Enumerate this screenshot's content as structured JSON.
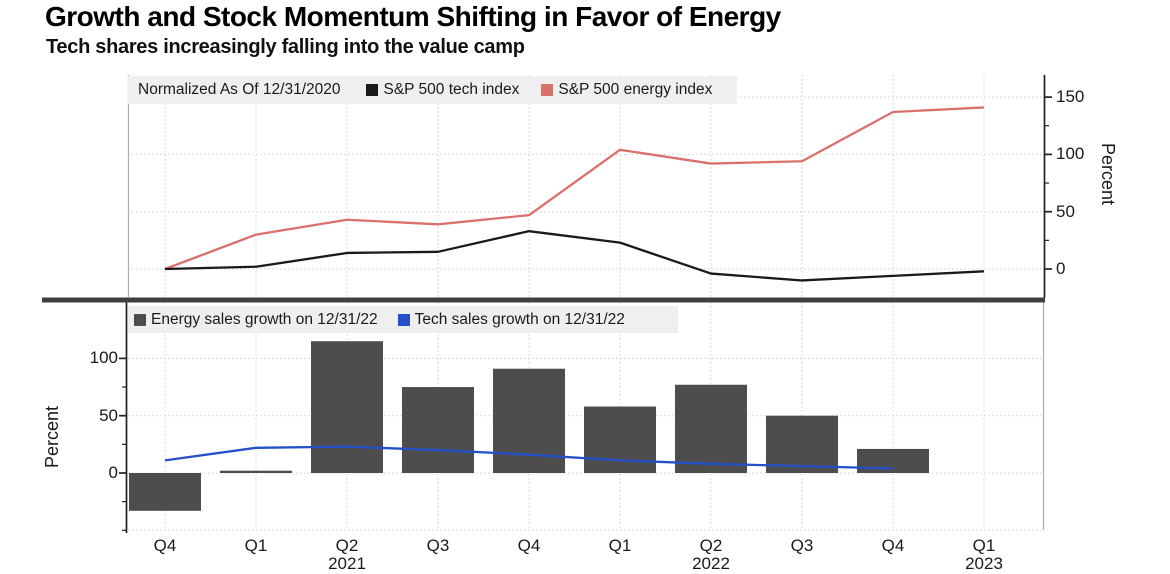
{
  "header": {
    "title": "Growth and Stock Momentum Shifting in Favor of Energy",
    "subtitle": "Tech shares increasingly falling into the value camp"
  },
  "colors": {
    "tech_index_line": "#1a1a1a",
    "energy_index_line": "#d9716b",
    "energy_bar": "#4d4d4d",
    "tech_sales_line": "#2450c8",
    "legend_background": "#efefef",
    "gridline": "#cfcfcf",
    "divider": "#3f3f3f"
  },
  "x_axis": {
    "quarters": [
      "Q4",
      "Q1",
      "Q2",
      "Q3",
      "Q4",
      "Q1",
      "Q2",
      "Q3",
      "Q4",
      "Q1"
    ],
    "years": [
      {
        "index": 2,
        "label": "2021"
      },
      {
        "index": 6,
        "label": "2022"
      },
      {
        "index": 9,
        "label": "2023"
      }
    ]
  },
  "chart_data": [
    {
      "type": "line",
      "note": "Normalized As Of 12/31/2020",
      "categories": [
        "Q4 2020",
        "Q1 2021",
        "Q2 2021",
        "Q3 2021",
        "Q4 2021",
        "Q1 2022",
        "Q2 2022",
        "Q3 2022",
        "Q4 2022",
        "Q1 2023"
      ],
      "series": [
        {
          "name": "S&P 500 tech index",
          "color": "#1a1a1a",
          "values": [
            0,
            2,
            14,
            15,
            33,
            23,
            -4,
            -10,
            -6,
            -2
          ]
        },
        {
          "name": "S&P 500 energy index",
          "color": "#d9716b",
          "values": [
            0,
            30,
            43,
            39,
            47,
            104,
            92,
            94,
            137,
            141
          ]
        }
      ],
      "ylabel": "Percent",
      "yticks": [
        0,
        50,
        100,
        150
      ],
      "minor_yticks": [
        25,
        75,
        125
      ],
      "ylim": [
        -25,
        170
      ],
      "grid": true,
      "legend_position": "top-left",
      "y_axis_side": "right"
    },
    {
      "type": "bar",
      "categories": [
        "Q4 2020",
        "Q1 2021",
        "Q2 2021",
        "Q3 2021",
        "Q4 2021",
        "Q1 2022",
        "Q2 2022",
        "Q3 2022",
        "Q4 2022",
        "Q1 2023"
      ],
      "series": [
        {
          "name": "Energy sales growth on 12/31/22",
          "type": "bar",
          "color": "#4d4d4d",
          "values": [
            -33,
            2,
            115,
            75,
            91,
            58,
            77,
            50,
            21,
            null
          ]
        },
        {
          "name": "Tech sales growth on 12/31/22",
          "type": "line",
          "color": "#2450c8",
          "values": [
            11,
            22,
            23,
            20,
            16,
            11,
            8,
            6,
            4,
            null
          ]
        }
      ],
      "ylabel": "Percent",
      "yticks": [
        0,
        50,
        100
      ],
      "minor_yticks": [
        -25,
        25,
        75
      ],
      "gridline_levels": [
        -50,
        0,
        50,
        100
      ],
      "ylim": [
        -50,
        150
      ],
      "grid": true,
      "legend_position": "top-left",
      "y_axis_side": "left"
    }
  ]
}
